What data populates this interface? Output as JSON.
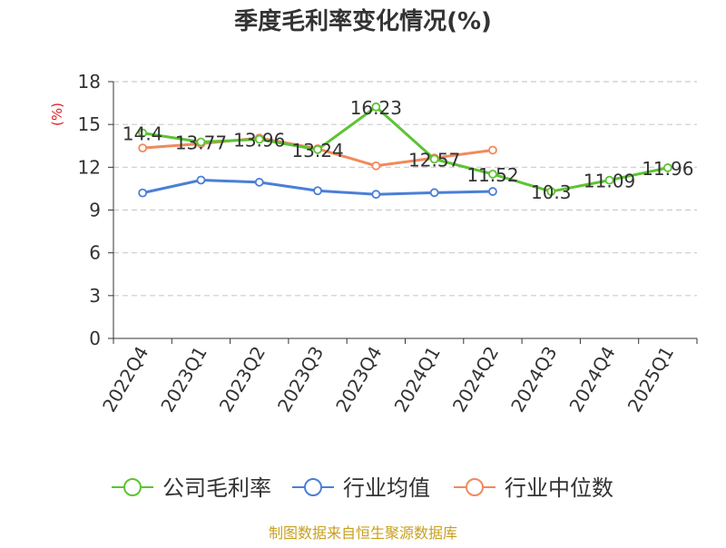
{
  "chart_data": {
    "type": "line",
    "title": "季度毛利率变化情况(%)",
    "ylabel": "(%)",
    "xlabel": "",
    "categories": [
      "2022Q4",
      "2023Q1",
      "2023Q2",
      "2023Q3",
      "2023Q4",
      "2024Q1",
      "2024Q2",
      "2024Q3",
      "2024Q4",
      "2025Q1"
    ],
    "ylim": [
      0,
      18
    ],
    "yticks": [
      "0",
      "3",
      "6",
      "9",
      "12",
      "15",
      "18"
    ],
    "grid": "horizontal dashed",
    "legend_position": "bottom",
    "series": [
      {
        "name": "公司毛利率",
        "color": "#5cc433",
        "values": [
          14.4,
          13.77,
          13.96,
          13.24,
          16.23,
          12.57,
          11.52,
          10.3,
          11.09,
          11.96
        ],
        "labels": [
          "14.4",
          "13.77",
          "13.96",
          "13.24",
          "16.23",
          "12.57",
          "11.52",
          "10.3",
          "11.09",
          "11.96"
        ]
      },
      {
        "name": "行业均值",
        "color": "#4a7fd6",
        "values": [
          10.2,
          11.1,
          10.95,
          10.35,
          10.1,
          10.22,
          10.3,
          null,
          null,
          null
        ]
      },
      {
        "name": "行业中位数",
        "color": "#f08a5d",
        "values": [
          13.35,
          13.65,
          14.05,
          13.3,
          12.1,
          12.65,
          13.2,
          null,
          null,
          null
        ]
      }
    ]
  },
  "footer": {
    "source": "制图数据来自恒生聚源数据库"
  },
  "colors": {
    "axis": "#333333",
    "grid": "#cccccc",
    "ylabel": "#e02020",
    "footer": "#c8a020"
  }
}
